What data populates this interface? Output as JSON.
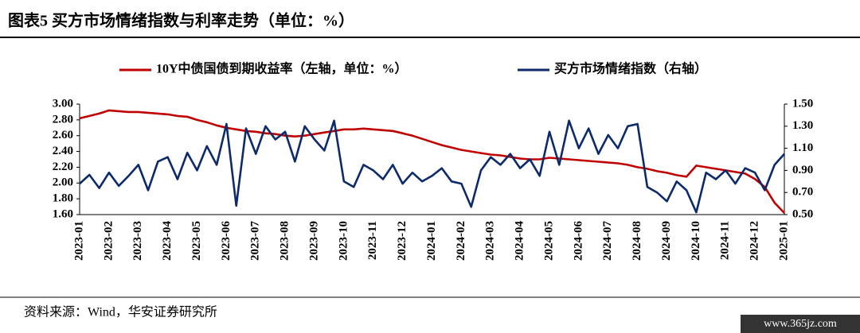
{
  "chart_data": {
    "type": "line",
    "title": "图表5  买方市场情绪指数与利率走势（单位：%）",
    "source": "资料来源：Wind，华安证券研究所",
    "watermark": "www.365jz.com",
    "x": [
      "2023-01",
      null,
      null,
      "2023-02",
      null,
      null,
      "2023-03",
      null,
      null,
      "2023-04",
      null,
      null,
      "2023-05",
      null,
      null,
      "2023-06",
      null,
      null,
      "2023-07",
      null,
      null,
      "2023-08",
      null,
      null,
      "2023-09",
      null,
      null,
      "2023-10",
      null,
      null,
      "2023-11",
      null,
      null,
      "2023-12",
      null,
      null,
      "2024-01",
      null,
      null,
      "2024-02",
      null,
      null,
      "2024-03",
      null,
      null,
      "2024-04",
      null,
      null,
      "2024-05",
      null,
      null,
      "2024-06",
      null,
      null,
      "2024-07",
      null,
      null,
      "2024-08",
      null,
      null,
      "2024-09",
      null,
      null,
      "2024-10",
      null,
      null,
      "2024-11",
      null,
      null,
      "2024-12",
      null,
      null,
      "2025-01"
    ],
    "series": [
      {
        "name": "10Y中债国债到期收益率（左轴，单位：%）",
        "color": "#c00000",
        "axis": "y",
        "values": [
          2.82,
          2.85,
          2.88,
          2.92,
          2.91,
          2.9,
          2.9,
          2.89,
          2.88,
          2.87,
          2.85,
          2.84,
          2.8,
          2.77,
          2.73,
          2.7,
          2.68,
          2.66,
          2.65,
          2.63,
          2.62,
          2.6,
          2.59,
          2.6,
          2.62,
          2.64,
          2.66,
          2.68,
          2.68,
          2.69,
          2.68,
          2.67,
          2.66,
          2.63,
          2.6,
          2.56,
          2.52,
          2.48,
          2.45,
          2.42,
          2.4,
          2.38,
          2.36,
          2.35,
          2.33,
          2.31,
          2.3,
          2.3,
          2.32,
          2.31,
          2.3,
          2.29,
          2.28,
          2.27,
          2.26,
          2.25,
          2.23,
          2.2,
          2.18,
          2.15,
          2.13,
          2.1,
          2.08,
          2.22,
          2.2,
          2.18,
          2.16,
          2.14,
          2.12,
          2.05,
          1.95,
          1.75,
          1.62
        ]
      },
      {
        "name": "买方市场情绪指数（右轴）",
        "color": "#0d2a6b",
        "axis": "y2",
        "values": [
          0.78,
          0.86,
          0.74,
          0.88,
          0.76,
          0.85,
          0.95,
          0.72,
          0.98,
          1.02,
          0.82,
          1.06,
          0.9,
          1.12,
          0.95,
          1.32,
          0.58,
          1.28,
          1.05,
          1.3,
          1.18,
          1.25,
          0.98,
          1.3,
          1.18,
          1.08,
          1.35,
          0.8,
          0.75,
          0.95,
          0.9,
          0.82,
          0.95,
          0.78,
          0.88,
          0.8,
          0.85,
          0.92,
          0.8,
          0.78,
          0.57,
          0.9,
          1.02,
          0.95,
          1.05,
          0.92,
          1.0,
          0.85,
          1.25,
          0.95,
          1.35,
          1.1,
          1.28,
          1.05,
          1.22,
          1.1,
          1.3,
          1.32,
          0.75,
          0.7,
          0.62,
          0.8,
          0.72,
          0.52,
          0.88,
          0.82,
          0.9,
          0.78,
          0.92,
          0.88,
          0.72,
          0.95,
          1.05
        ]
      }
    ],
    "ylim": [
      1.6,
      3.0
    ],
    "yticks": [
      {
        "value": 1.6,
        "label": "1.60"
      },
      {
        "value": 1.8,
        "label": "1.80"
      },
      {
        "value": 2.0,
        "label": "2.00"
      },
      {
        "value": 2.2,
        "label": "2.20"
      },
      {
        "value": 2.4,
        "label": "2.40"
      },
      {
        "value": 2.6,
        "label": "2.60"
      },
      {
        "value": 2.8,
        "label": "2.80"
      },
      {
        "value": 3.0,
        "label": "3.00"
      }
    ],
    "y2lim": [
      0.5,
      1.5
    ],
    "y2ticks": [
      {
        "value": 0.5,
        "label": "0.50"
      },
      {
        "value": 0.7,
        "label": "0.70"
      },
      {
        "value": 0.9,
        "label": "0.90"
      },
      {
        "value": 1.1,
        "label": "1.10"
      },
      {
        "value": 1.3,
        "label": "1.30"
      },
      {
        "value": 1.5,
        "label": "1.50"
      }
    ],
    "grid": false,
    "legend": "top"
  }
}
